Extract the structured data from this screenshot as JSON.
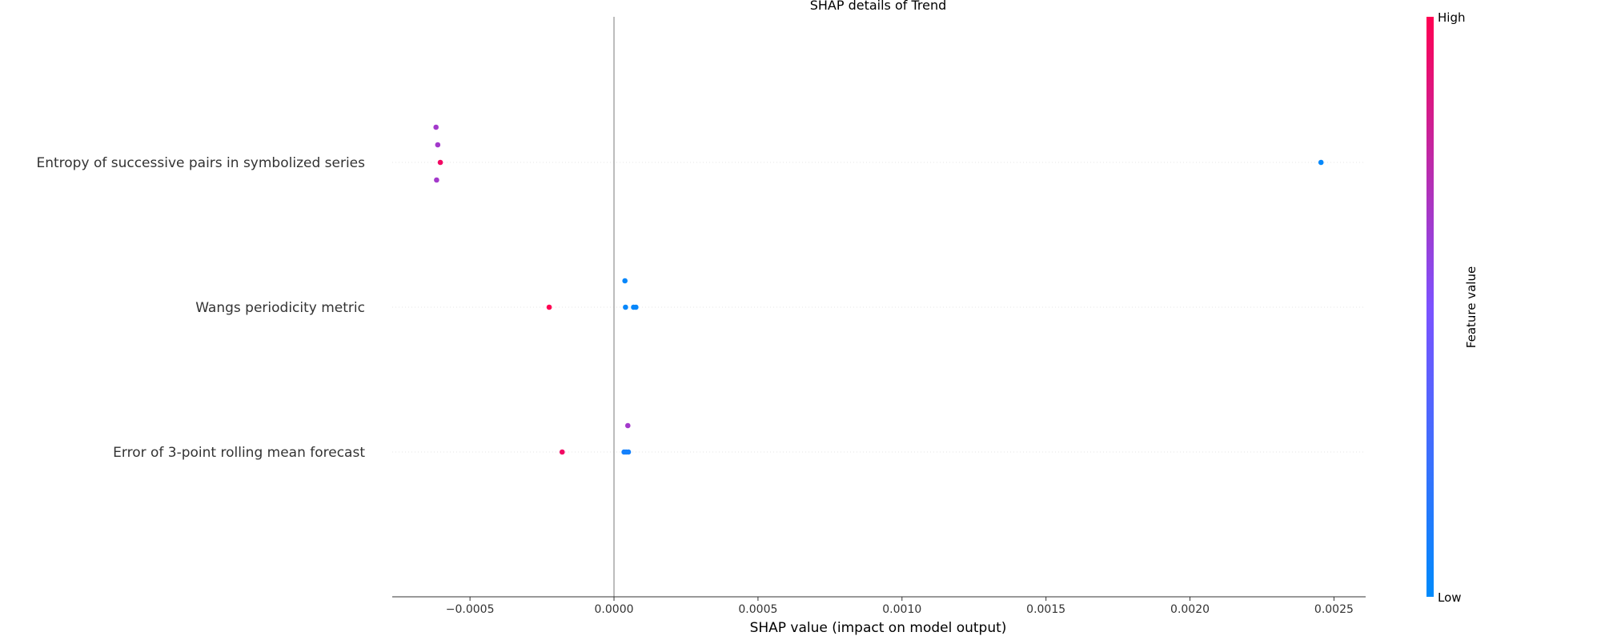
{
  "chart_data": {
    "type": "scatter",
    "title": "SHAP details of Trend",
    "xlabel": "SHAP value (impact on model output)",
    "xlim": [
      -0.00077,
      0.00261
    ],
    "xticks": [
      -0.0005,
      0.0,
      0.0005,
      0.001,
      0.0015,
      0.002,
      0.0025
    ],
    "xtick_labels": [
      "−0.0005",
      "0.0000",
      "0.0005",
      "0.0010",
      "0.0015",
      "0.0020",
      "0.0025"
    ],
    "grid": false,
    "features": [
      "Entropy of successive pairs in symbolized series",
      "Wangs periodicity metric",
      "Error of 3-point rolling mean forecast"
    ],
    "points": [
      {
        "feature": 0,
        "x": -0.000618,
        "jitter": -2,
        "feature_value": 0.65
      },
      {
        "feature": 0,
        "x": -0.000612,
        "jitter": -1,
        "feature_value": 0.65
      },
      {
        "feature": 0,
        "x": -0.000603,
        "jitter": 0,
        "feature_value": 0.95
      },
      {
        "feature": 0,
        "x": -0.000616,
        "jitter": 1,
        "feature_value": 0.65
      },
      {
        "feature": 0,
        "x": 0.002455,
        "jitter": 0,
        "feature_value": 0.02
      },
      {
        "feature": 1,
        "x": 3.8e-05,
        "jitter": -1.5,
        "feature_value": 0.03
      },
      {
        "feature": 1,
        "x": -0.000225,
        "jitter": 0,
        "feature_value": 1.0
      },
      {
        "feature": 1,
        "x": 4e-05,
        "jitter": 0,
        "feature_value": 0.03
      },
      {
        "feature": 1,
        "x": 6.8e-05,
        "jitter": 0,
        "feature_value": 0.03
      },
      {
        "feature": 1,
        "x": 7.6e-05,
        "jitter": 0,
        "feature_value": 0.03
      },
      {
        "feature": 2,
        "x": 4.8e-05,
        "jitter": -1.5,
        "feature_value": 0.65
      },
      {
        "feature": 2,
        "x": -0.00018,
        "jitter": 0,
        "feature_value": 0.95
      },
      {
        "feature": 2,
        "x": 3.5e-05,
        "jitter": 0,
        "feature_value": 0.08
      },
      {
        "feature": 2,
        "x": 4.2e-05,
        "jitter": 0,
        "feature_value": 0.08
      },
      {
        "feature": 2,
        "x": 5e-05,
        "jitter": 0,
        "feature_value": 0.08
      }
    ],
    "colorbar": {
      "label": "Feature value",
      "high_label": "High",
      "low_label": "Low",
      "low_color": "#008afb",
      "mid_color": "#7c52ff",
      "high_color": "#ff0052"
    },
    "zero_line_color": "#999999"
  }
}
